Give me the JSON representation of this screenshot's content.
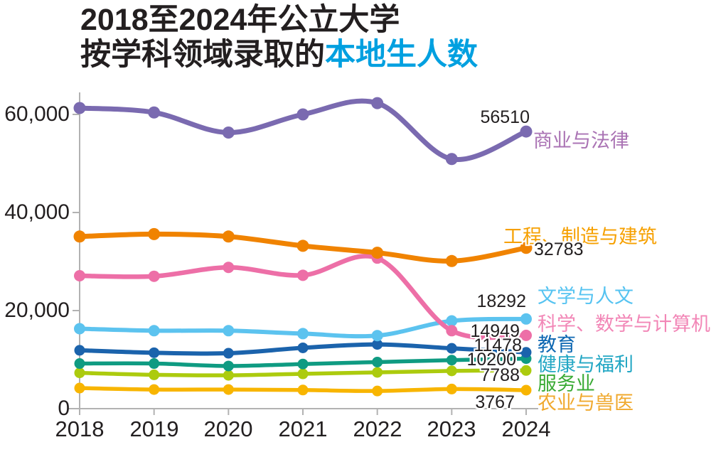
{
  "title": {
    "line1": "2018至2024年公立大学",
    "line2_black": "按学科领域录取的",
    "line2_highlight": "本地生人数"
  },
  "colors": {
    "text": "#231f20",
    "axis": "#b2b2b2",
    "title_highlight": "#00a0e0",
    "background": "#ffffff"
  },
  "chart_data": {
    "type": "line",
    "x": [
      2018,
      2019,
      2020,
      2021,
      2022,
      2023,
      2024
    ],
    "ylim": [
      0,
      65000
    ],
    "yticks": [
      0,
      20000,
      40000,
      60000
    ],
    "ytick_labels": [
      "0",
      "20,000",
      "40,000",
      "60,000"
    ],
    "grid": false,
    "legend_position": "right-annotations",
    "series": [
      {
        "name": "商业与法律",
        "color": "#7a6ab0",
        "label_color": "#aa73b4",
        "values": [
          61300,
          60400,
          56300,
          60000,
          62300,
          50900,
          56510
        ],
        "end_label": "56510"
      },
      {
        "name": "工程、制造与建筑",
        "color": "#f08300",
        "label_color": "#f6a000",
        "values": [
          35100,
          35600,
          35100,
          33200,
          31800,
          30100,
          32783
        ],
        "end_label": "32783"
      },
      {
        "name": "文学与人文",
        "color": "#5cc3ef",
        "label_color": "#55c3f1",
        "values": [
          16300,
          15900,
          15900,
          15300,
          14900,
          17900,
          18292
        ],
        "end_label": "18292"
      },
      {
        "name": "科学、数学与计算机",
        "color": "#ed6fa7",
        "label_color": "#f287b7",
        "values": [
          27100,
          27000,
          28800,
          27200,
          30700,
          15900,
          14949
        ],
        "end_label": "14949"
      },
      {
        "name": "教育",
        "color": "#1b63ac",
        "label_color": "#0d67b2",
        "values": [
          11900,
          11400,
          11300,
          12400,
          13100,
          12300,
          11478
        ],
        "end_label": "11478"
      },
      {
        "name": "健康与福利",
        "color": "#0f9b82",
        "label_color": "#23a7c4",
        "values": [
          9200,
          9200,
          8700,
          9100,
          9500,
          9900,
          10200
        ],
        "end_label": "10200"
      },
      {
        "name": "服务业",
        "color": "#accb0e",
        "label_color": "#3aaa35",
        "values": [
          7300,
          6900,
          6800,
          7100,
          7400,
          7700,
          7788
        ],
        "end_label": "7788"
      },
      {
        "name": "农业与兽医",
        "color": "#f8b500",
        "label_color": "#f0a92e",
        "values": [
          4200,
          3900,
          3900,
          3800,
          3600,
          4000,
          3767
        ],
        "end_label": "3767"
      }
    ]
  }
}
